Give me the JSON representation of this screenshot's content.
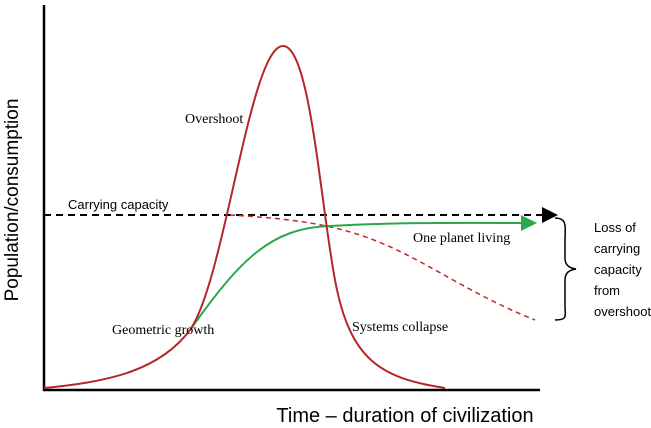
{
  "axes": {
    "y_label": "Population/consumption",
    "x_label": "Time – duration of civilization"
  },
  "labels": {
    "overshoot": "Overshoot",
    "carrying_capacity": "Carrying capacity",
    "one_planet": "One planet living",
    "geometric": "Geometric growth",
    "collapse": "Systems collapse"
  },
  "brace_note": [
    "Loss of",
    "carrying",
    "capacity",
    "from",
    "overshoot"
  ]
}
